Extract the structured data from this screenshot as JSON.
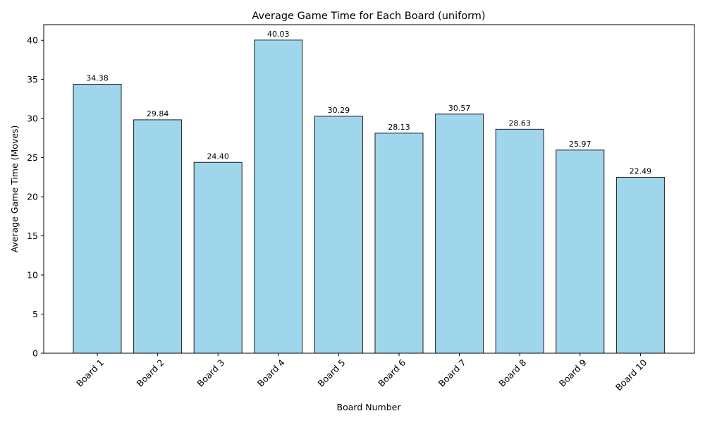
{
  "chart_data": {
    "type": "bar",
    "title": "Average Game Time for Each Board (uniform)",
    "xlabel": "Board Number",
    "ylabel": "Average Game Time (Moves)",
    "categories": [
      "Board 1",
      "Board 2",
      "Board 3",
      "Board 4",
      "Board 5",
      "Board 6",
      "Board 7",
      "Board 8",
      "Board 9",
      "Board 10"
    ],
    "values": [
      34.38,
      29.84,
      24.4,
      40.03,
      30.29,
      28.13,
      30.57,
      28.63,
      25.97,
      22.49
    ],
    "value_labels": [
      "34.38",
      "29.84",
      "24.40",
      "40.03",
      "30.29",
      "28.13",
      "30.57",
      "28.63",
      "25.97",
      "22.49"
    ],
    "ylim": [
      0,
      42
    ],
    "yticks": [
      0,
      5,
      10,
      15,
      20,
      25,
      30,
      35,
      40
    ],
    "grid": false,
    "legend": "none",
    "bar_color": "#a0d6ec",
    "edge_color": "#1f1f1f"
  }
}
